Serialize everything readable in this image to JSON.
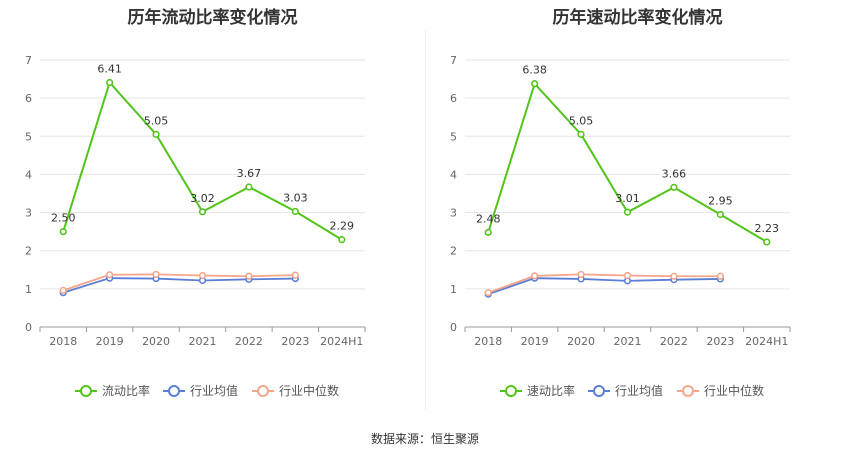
{
  "chart_data": [
    {
      "type": "line",
      "title": "历年流动比率变化情况",
      "categories": [
        "2018",
        "2019",
        "2020",
        "2021",
        "2022",
        "2023",
        "2024H1"
      ],
      "ylim": [
        0,
        7
      ],
      "yticks": [
        "0",
        "1",
        "2",
        "3",
        "4",
        "5",
        "6",
        "7"
      ],
      "series": [
        {
          "name": "流动比率",
          "color": "#52c41a",
          "values": [
            2.5,
            6.41,
            5.05,
            3.02,
            3.67,
            3.03,
            2.29
          ],
          "labels": [
            "2.50",
            "6.41",
            "5.05",
            "3.02",
            "3.67",
            "3.03",
            "2.29"
          ]
        },
        {
          "name": "行业均值",
          "color": "#5b7fd6",
          "values": [
            0.9,
            1.28,
            1.27,
            1.22,
            1.25,
            1.27,
            null
          ]
        },
        {
          "name": "行业中位数",
          "color": "#f4a58a",
          "values": [
            0.96,
            1.37,
            1.38,
            1.35,
            1.33,
            1.36,
            null
          ]
        }
      ]
    },
    {
      "type": "line",
      "title": "历年速动比率变化情况",
      "categories": [
        "2018",
        "2019",
        "2020",
        "2021",
        "2022",
        "2023",
        "2024H1"
      ],
      "ylim": [
        0,
        7
      ],
      "yticks": [
        "0",
        "1",
        "2",
        "3",
        "4",
        "5",
        "6",
        "7"
      ],
      "series": [
        {
          "name": "速动比率",
          "color": "#52c41a",
          "values": [
            2.48,
            6.38,
            5.05,
            3.01,
            3.66,
            2.95,
            2.23
          ],
          "labels": [
            "2.48",
            "6.38",
            "5.05",
            "3.01",
            "3.66",
            "2.95",
            "2.23"
          ]
        },
        {
          "name": "行业均值",
          "color": "#5b7fd6",
          "values": [
            0.86,
            1.28,
            1.26,
            1.21,
            1.24,
            1.26,
            null
          ]
        },
        {
          "name": "行业中位数",
          "color": "#f4a58a",
          "values": [
            0.9,
            1.34,
            1.38,
            1.35,
            1.33,
            1.33,
            null
          ]
        }
      ]
    }
  ],
  "footer": {
    "source": "数据来源：恒生聚源"
  }
}
